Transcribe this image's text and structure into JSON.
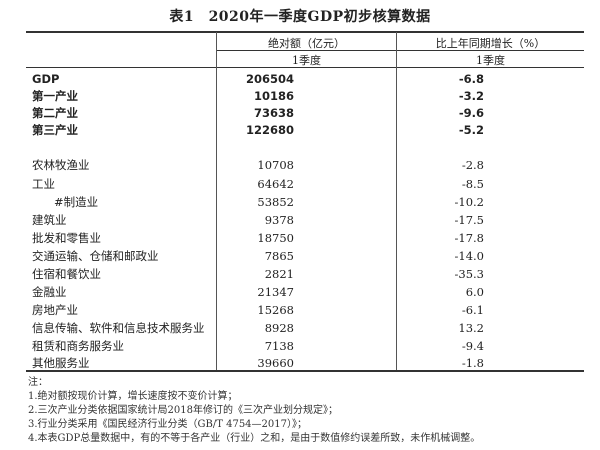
{
  "title": "表1　2020年一季度GDP初步核算数据",
  "header": {
    "col_abs": "绝对额（亿元）",
    "col_growth": "比上年同期增长（%）",
    "sub_abs": "1季度",
    "sub_growth": "1季度"
  },
  "rows": [
    {
      "label": "GDP",
      "value": "206504",
      "growth": "-6.8",
      "bold": true
    },
    {
      "label": "第一产业",
      "value": "10186",
      "growth": "-3.2",
      "bold": true
    },
    {
      "label": "第二产业",
      "value": "73638",
      "growth": "-9.6",
      "bold": true
    },
    {
      "label": "第三产业",
      "value": "122680",
      "growth": "-5.2",
      "bold": true
    },
    {
      "label": "农林牧渔业",
      "value": "10708",
      "growth": "-2.8"
    },
    {
      "label": "工业",
      "value": "64642",
      "growth": "-8.5"
    },
    {
      "label": "#制造业",
      "value": "53852",
      "growth": "-10.2",
      "sub": true
    },
    {
      "label": "建筑业",
      "value": "9378",
      "growth": "-17.5"
    },
    {
      "label": "批发和零售业",
      "value": "18750",
      "growth": "-17.8"
    },
    {
      "label": "交通运输、仓储和邮政业",
      "value": "7865",
      "growth": "-14.0"
    },
    {
      "label": "住宿和餐饮业",
      "value": "2821",
      "growth": "-35.3"
    },
    {
      "label": "金融业",
      "value": "21347",
      "growth": "6.0"
    },
    {
      "label": "房地产业",
      "value": "15268",
      "growth": "-6.1"
    },
    {
      "label": "信息传输、软件和信息技术服务业",
      "value": "8928",
      "growth": "13.2"
    },
    {
      "label": "租赁和商务服务业",
      "value": "7138",
      "growth": "-9.4"
    },
    {
      "label": "其他服务业",
      "value": "39660",
      "growth": "-1.8"
    }
  ],
  "notes": {
    "heading": "注：",
    "items": [
      "1.绝对额按现价计算，增长速度按不变价计算；",
      "2.三次产业分类依据国家统计局2018年修订的《三次产业划分规定》；",
      "3.行业分类采用《国民经济行业分类（GB/T 4754—2017）》；",
      "4.本表GDP总量数据中，有的不等于各产业（行业）之和，是由于数值修约误差所致，未作机械调整。"
    ]
  }
}
